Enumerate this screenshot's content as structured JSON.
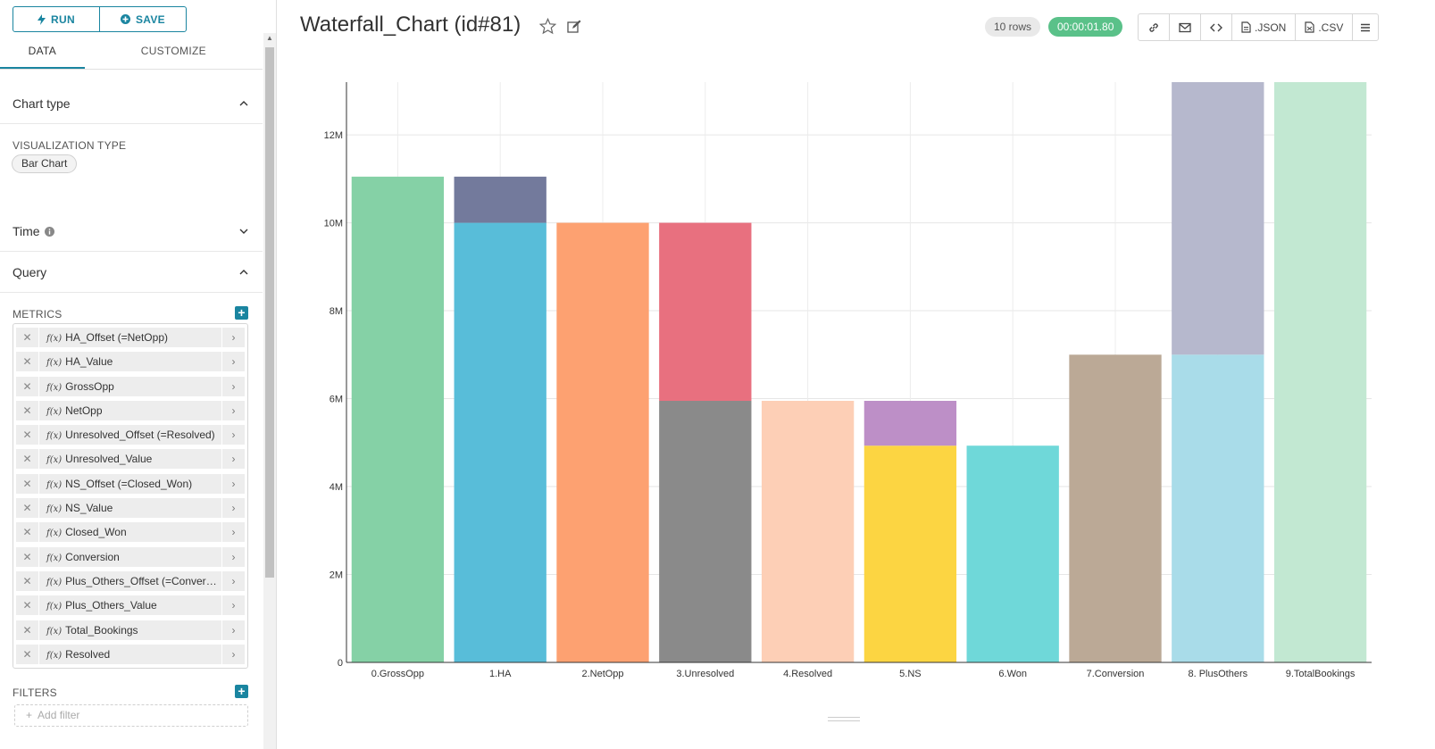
{
  "sidebar": {
    "run_label": "RUN",
    "save_label": "SAVE",
    "tabs": [
      "DATA",
      "CUSTOMIZE"
    ],
    "chart_type_section": "Chart type",
    "viz_type_label": "VISUALIZATION TYPE",
    "viz_type_value": "Bar Chart",
    "time_section": "Time",
    "query_section": "Query",
    "metrics_label": "METRICS",
    "metrics": [
      "HA_Offset (=NetOpp)",
      "HA_Value",
      "GrossOpp",
      "NetOpp",
      "Unresolved_Offset (=Resolved)",
      "Unresolved_Value",
      "NS_Offset (=Closed_Won)",
      "NS_Value",
      "Closed_Won",
      "Conversion",
      "Plus_Others_Offset (=Conversi...",
      "Plus_Others_Value",
      "Total_Bookings",
      "Resolved"
    ],
    "fx_label": "f(x)",
    "filters_label": "FILTERS",
    "add_filter_placeholder": "Add filter"
  },
  "header": {
    "title": "Waterfall_Chart (id#81)",
    "rows_badge": "10 rows",
    "time_badge": "00:00:01.80",
    "json_label": ".JSON",
    "csv_label": ".CSV"
  },
  "chart_data": {
    "type": "bar",
    "stacked": true,
    "grid": true,
    "ylim": [
      0,
      13200000
    ],
    "yticks": [
      0,
      2000000,
      4000000,
      6000000,
      8000000,
      10000000,
      12000000
    ],
    "ytick_labels": [
      "0",
      "2M",
      "4M",
      "6M",
      "8M",
      "10M",
      "12M"
    ],
    "categories": [
      "0.GrossOpp",
      "1.HA",
      "2.NetOpp",
      "3.Unresolved",
      "4.Resolved",
      "5.NS",
      "6.Won",
      "7.Conversion",
      "8. PlusOthers",
      "9.TotalBookings"
    ],
    "bars": [
      [
        {
          "value": 11050000,
          "color": "#85d1a6"
        }
      ],
      [
        {
          "value": 10000000,
          "color": "#58bdd9"
        },
        {
          "value": 1050000,
          "color": "#737a9c"
        }
      ],
      [
        {
          "value": 10000000,
          "color": "#fda171"
        }
      ],
      [
        {
          "value": 5950000,
          "color": "#8a8a8a"
        },
        {
          "value": 4050000,
          "color": "#e8707f"
        }
      ],
      [
        {
          "value": 5950000,
          "color": "#fdcfb6"
        }
      ],
      [
        {
          "value": 4930000,
          "color": "#fcd542"
        },
        {
          "value": 1020000,
          "color": "#bd8fc7"
        }
      ],
      [
        {
          "value": 4930000,
          "color": "#6fd8d9"
        }
      ],
      [
        {
          "value": 7000000,
          "color": "#bba996"
        }
      ],
      [
        {
          "value": 7000000,
          "color": "#a9dce9"
        },
        {
          "value": 6200000,
          "color": "#b6b8cd"
        }
      ],
      [
        {
          "value": 13200000,
          "color": "#c2e8d2"
        }
      ]
    ]
  }
}
